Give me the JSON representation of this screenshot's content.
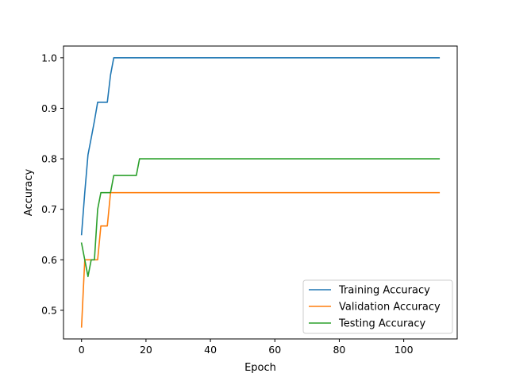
{
  "chart_data": {
    "type": "line",
    "title": "",
    "xlabel": "Epoch",
    "ylabel": "Accuracy",
    "xlim": [
      -5.6,
      116.6
    ],
    "ylim": [
      0.4433,
      1.0233
    ],
    "xticks": [
      0,
      20,
      40,
      60,
      80,
      100
    ],
    "xtick_labels": [
      "0",
      "20",
      "40",
      "60",
      "80",
      "100"
    ],
    "yticks": [
      0.5,
      0.6,
      0.7,
      0.8,
      0.9,
      1.0
    ],
    "ytick_labels": [
      "0.5",
      "0.6",
      "0.7",
      "0.8",
      "0.9",
      "1.0"
    ],
    "grid": false,
    "legend": "lower-right",
    "series": [
      {
        "name": "Training Accuracy",
        "color": "#1f77b4",
        "points": [
          [
            0,
            0.65
          ],
          [
            1,
            0.733
          ],
          [
            2,
            0.808
          ],
          [
            3,
            0.841
          ],
          [
            4,
            0.875
          ],
          [
            5,
            0.912
          ],
          [
            6,
            0.912
          ],
          [
            7,
            0.912
          ],
          [
            8,
            0.912
          ],
          [
            9,
            0.966
          ],
          [
            10,
            1.0
          ],
          [
            111,
            1.0
          ]
        ]
      },
      {
        "name": "Validation Accuracy",
        "color": "#ff7f0e",
        "points": [
          [
            0,
            0.467
          ],
          [
            1,
            0.6
          ],
          [
            2,
            0.6
          ],
          [
            3,
            0.6
          ],
          [
            4,
            0.6
          ],
          [
            5,
            0.6
          ],
          [
            6,
            0.667
          ],
          [
            7,
            0.667
          ],
          [
            8,
            0.667
          ],
          [
            9,
            0.733
          ],
          [
            111,
            0.733
          ]
        ]
      },
      {
        "name": "Testing Accuracy",
        "color": "#2ca02c",
        "points": [
          [
            0,
            0.633
          ],
          [
            1,
            0.6
          ],
          [
            2,
            0.567
          ],
          [
            3,
            0.6
          ],
          [
            4,
            0.6
          ],
          [
            5,
            0.7
          ],
          [
            6,
            0.733
          ],
          [
            7,
            0.733
          ],
          [
            8,
            0.733
          ],
          [
            9,
            0.733
          ],
          [
            10,
            0.767
          ],
          [
            16,
            0.767
          ],
          [
            17,
            0.767
          ],
          [
            18,
            0.8
          ],
          [
            111,
            0.8
          ]
        ]
      }
    ]
  }
}
